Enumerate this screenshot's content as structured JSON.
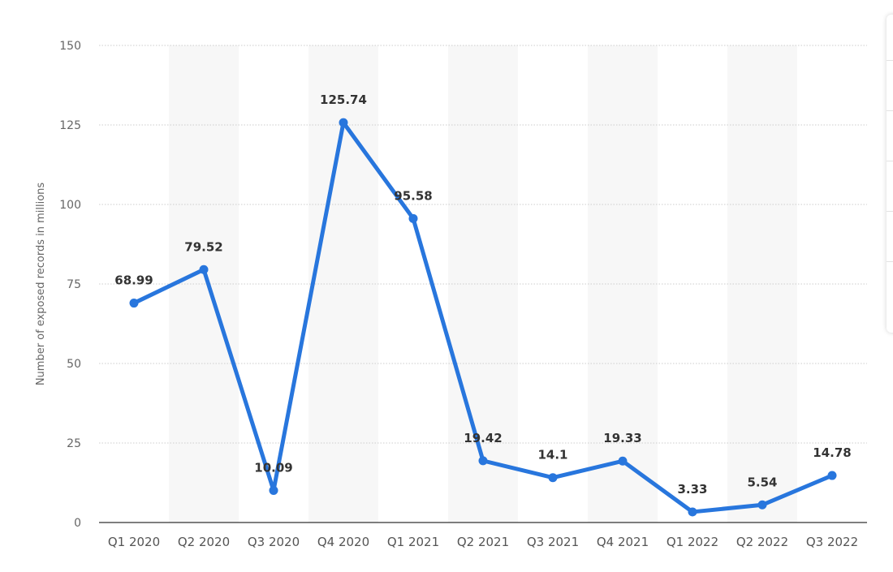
{
  "chart_data": {
    "type": "line",
    "categories": [
      "Q1 2020",
      "Q2 2020",
      "Q3 2020",
      "Q4 2020",
      "Q1 2021",
      "Q2 2021",
      "Q3 2021",
      "Q4 2021",
      "Q1 2022",
      "Q2 2022",
      "Q3 2022"
    ],
    "series": [
      {
        "values": [
          68.99,
          79.52,
          10.09,
          125.74,
          95.58,
          19.42,
          14.1,
          19.33,
          3.33,
          5.54,
          14.78
        ],
        "labels": [
          "68.99",
          "79.52",
          "10.09",
          "125.74",
          "95.58",
          "19.42",
          "14.1",
          "19.33",
          "3.33",
          "5.54",
          "14.78"
        ],
        "color": "#2876dd"
      }
    ],
    "ylabel": "Number of exposed records in millions",
    "xlabel": "",
    "ylim": [
      0,
      150
    ],
    "yticks": [
      0,
      25,
      50,
      75,
      100,
      125,
      150
    ],
    "ytick_labels": [
      "0",
      "25",
      "50",
      "75",
      "100",
      "125",
      "150"
    ],
    "grid": true,
    "alternating_band_color": "#f7f7f7",
    "gridline_color": "#cccccc",
    "axis_color": "#333333"
  }
}
